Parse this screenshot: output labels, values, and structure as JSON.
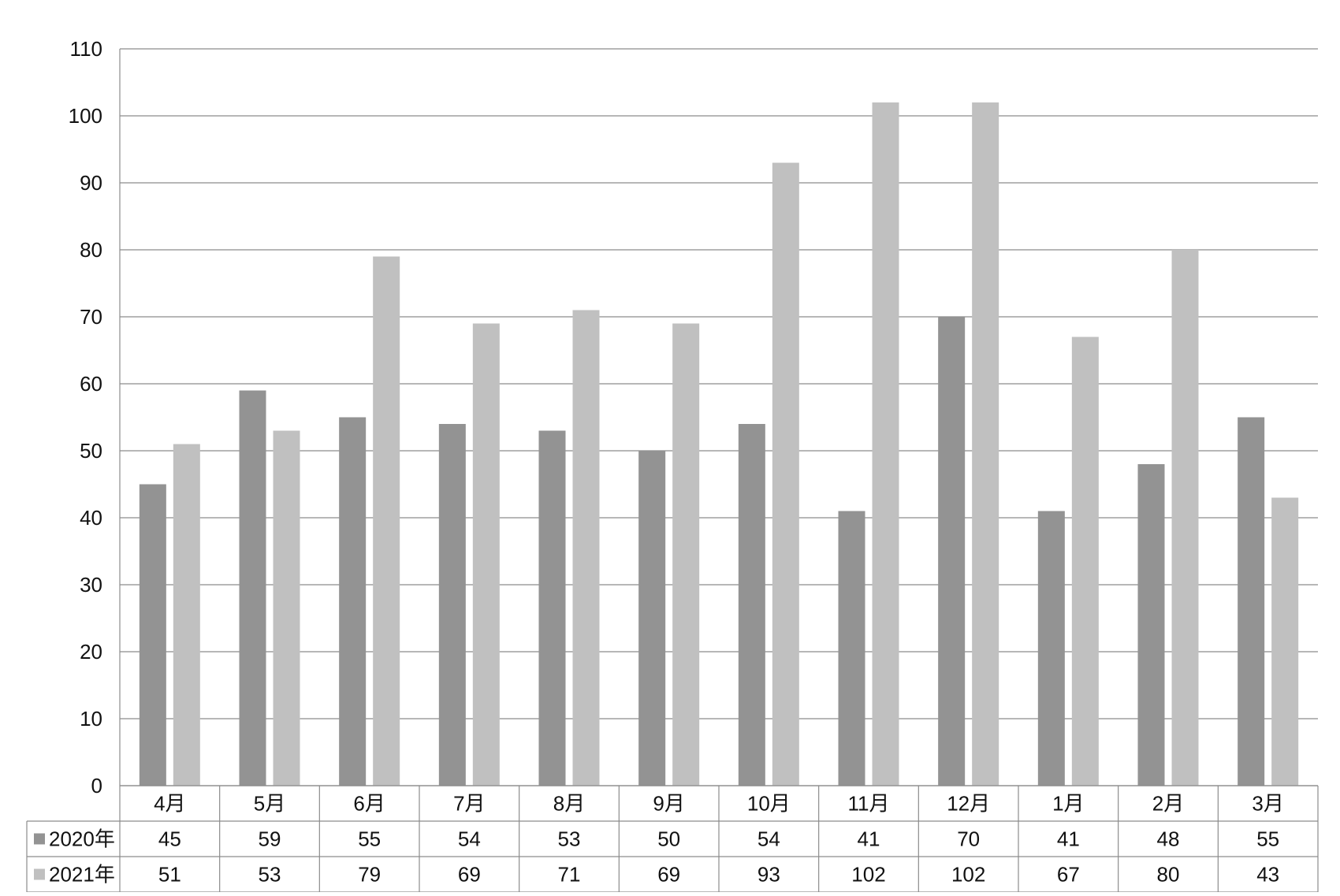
{
  "chart_data": {
    "type": "bar",
    "title": "",
    "xlabel": "",
    "ylabel": "",
    "categories": [
      "4月",
      "5月",
      "6月",
      "7月",
      "8月",
      "9月",
      "10月",
      "11月",
      "12月",
      "1月",
      "2月",
      "3月"
    ],
    "series": [
      {
        "name": "2020年",
        "color": "#939393",
        "values": [
          45,
          59,
          55,
          54,
          53,
          50,
          54,
          41,
          70,
          41,
          48,
          55
        ]
      },
      {
        "name": "2021年",
        "color": "#c0c0c0",
        "values": [
          51,
          53,
          79,
          69,
          71,
          69,
          93,
          102,
          102,
          67,
          80,
          43
        ]
      }
    ],
    "ylim": [
      0,
      110
    ],
    "yticks": [
      0,
      10,
      20,
      30,
      40,
      50,
      60,
      70,
      80,
      90,
      100,
      110
    ],
    "grid": true,
    "legend": "data-table-left",
    "data_table": true
  }
}
